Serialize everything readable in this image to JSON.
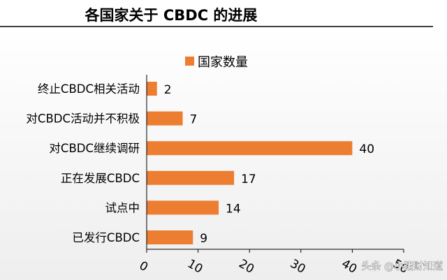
{
  "watermark": "头条 @小猪财知道",
  "colors": {
    "bar": "#ED7D31",
    "axis": "#000000",
    "text": "#000000"
  },
  "chart_data": {
    "type": "bar",
    "orientation": "horizontal",
    "title": "各国家关于 CBDC 的进展",
    "categories": [
      "终止CBDC相关活动",
      "对CBDC活动并不积极",
      "对CBDC继续调研",
      "正在发展CBDC",
      "试点中",
      "已发行CBDC"
    ],
    "series": [
      {
        "name": "国家数量",
        "values": [
          2,
          7,
          40,
          17,
          14,
          9
        ]
      }
    ],
    "xlabel": "",
    "ylabel": "",
    "xlim": [
      0,
      50
    ],
    "xticks": [
      0,
      10,
      20,
      30,
      40,
      50
    ],
    "data_labels": true,
    "legend": "top",
    "grid": false
  }
}
